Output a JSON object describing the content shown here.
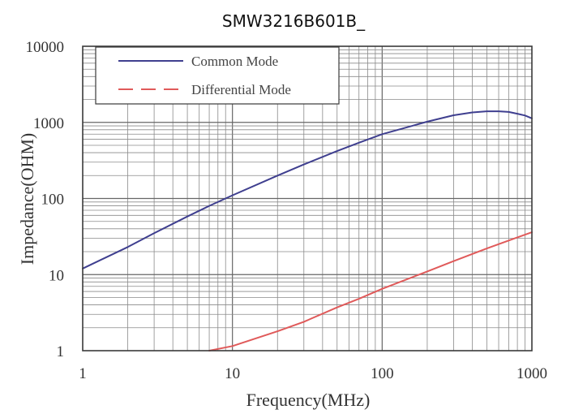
{
  "chart_data": {
    "type": "line",
    "title": "SMW3216B601B_",
    "xlabel": "Frequency(MHz)",
    "ylabel": "Impedance(OHM)",
    "xscale": "log",
    "yscale": "log",
    "xlim": [
      1,
      1000
    ],
    "ylim": [
      1,
      10000
    ],
    "x_ticks": [
      "1",
      "10",
      "100",
      "1000"
    ],
    "y_ticks": [
      "1",
      "10",
      "100",
      "1000",
      "10000"
    ],
    "grid": true,
    "legend_position": "top-left",
    "series": [
      {
        "name": "Common Mode",
        "color": "#3f3f8f",
        "dash": "solid",
        "x": [
          1,
          2,
          3,
          5,
          7,
          10,
          20,
          30,
          50,
          70,
          100,
          200,
          300,
          400,
          500,
          600,
          700,
          800,
          900,
          1000
        ],
        "y": [
          12,
          23,
          35,
          58,
          80,
          110,
          200,
          280,
          420,
          540,
          700,
          1020,
          1240,
          1350,
          1400,
          1400,
          1370,
          1300,
          1230,
          1130
        ]
      },
      {
        "name": "Differential Mode",
        "color": "#e05a5a",
        "dash": "dashed",
        "x": [
          7,
          10,
          20,
          30,
          50,
          70,
          100,
          200,
          300,
          500,
          700,
          1000
        ],
        "y": [
          1,
          1.15,
          1.8,
          2.4,
          3.7,
          4.8,
          6.5,
          11,
          15,
          22,
          28,
          36
        ]
      }
    ]
  }
}
